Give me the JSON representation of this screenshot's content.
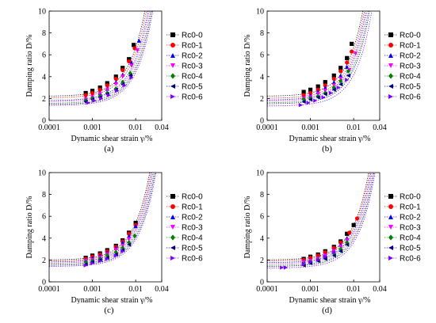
{
  "colors": {
    "Rc0-0": "#000000",
    "Rc0-1": "#ff0000",
    "Rc0-2": "#0000ff",
    "Rc0-3": "#ff00ff",
    "Rc0-4": "#008000",
    "Rc0-5": "#000080",
    "Rc0-6": "#8000ff"
  },
  "markers": {
    "Rc0-0": "square",
    "Rc0-1": "circle",
    "Rc0-2": "triangle-up",
    "Rc0-3": "triangle-down",
    "Rc0-4": "diamond",
    "Rc0-5": "triangle-left",
    "Rc0-6": "triangle-right"
  },
  "chart_data": [
    {
      "type": "scatter",
      "caption": "(a)",
      "xlabel": "Dynamic shear strain γ/%",
      "ylabel": "Damping ratio D/%",
      "xscale": "log",
      "xlim": [
        0.0001,
        0.04
      ],
      "ylim": [
        0,
        10
      ],
      "xticks": [
        "0.0001",
        "0.001",
        "0.01",
        "0.04"
      ],
      "yticks": [
        "0",
        "2",
        "4",
        "6",
        "8",
        "10"
      ],
      "legend": [
        "Rc0-0",
        "Rc0-1",
        "Rc0-2",
        "Rc0-3",
        "Rc0-4",
        "Rc0-5",
        "Rc0-6"
      ],
      "series": [
        {
          "name": "Rc0-0",
          "x": [
            0.0007,
            0.001,
            0.0015,
            0.0022,
            0.0035,
            0.005,
            0.007,
            0.009
          ],
          "y": [
            2.5,
            2.7,
            3.0,
            3.4,
            4.0,
            4.8,
            5.6,
            6.9
          ]
        },
        {
          "name": "Rc0-1",
          "x": [
            0.0007,
            0.001,
            0.0015,
            0.0022,
            0.0035,
            0.005,
            0.007,
            0.0095
          ],
          "y": [
            2.3,
            2.5,
            2.8,
            3.2,
            3.8,
            4.6,
            5.4,
            6.6
          ]
        },
        {
          "name": "Rc0-2",
          "x": [
            0.0007,
            0.001,
            0.0015,
            0.0022,
            0.0035,
            0.005,
            0.008,
            0.012
          ],
          "y": [
            2.0,
            2.2,
            2.5,
            2.9,
            3.5,
            4.2,
            5.3,
            7.3
          ]
        },
        {
          "name": "Rc0-3",
          "x": [
            0.0007,
            0.001,
            0.0015,
            0.0022,
            0.0035,
            0.005,
            0.008,
            0.011
          ],
          "y": [
            1.9,
            2.1,
            2.4,
            2.8,
            3.3,
            4.0,
            5.0,
            6.4
          ]
        },
        {
          "name": "Rc0-4",
          "x": [
            0.0007,
            0.001,
            0.0015,
            0.0022,
            0.0035,
            0.005,
            0.0075
          ],
          "y": [
            1.8,
            2.0,
            2.2,
            2.5,
            2.9,
            3.5,
            4.3
          ]
        },
        {
          "name": "Rc0-5",
          "x": [
            0.0007,
            0.001,
            0.0015,
            0.0022,
            0.0035,
            0.005,
            0.0075
          ],
          "y": [
            1.7,
            1.9,
            2.1,
            2.4,
            2.8,
            3.3,
            4.1
          ]
        },
        {
          "name": "Rc0-6",
          "x": [
            0.0008,
            0.0011,
            0.0016,
            0.0024,
            0.0037,
            0.0055,
            0.008
          ],
          "y": [
            1.6,
            1.8,
            2.0,
            2.3,
            2.7,
            3.2,
            3.9
          ]
        }
      ],
      "fits": [
        {
          "name": "Rc0-0",
          "d0": 2.2,
          "g": 0.0075
        },
        {
          "name": "Rc0-1",
          "d0": 2.05,
          "g": 0.008
        },
        {
          "name": "Rc0-2",
          "d0": 1.8,
          "g": 0.0085
        },
        {
          "name": "Rc0-3",
          "d0": 1.7,
          "g": 0.009
        },
        {
          "name": "Rc0-4",
          "d0": 1.55,
          "g": 0.0095
        },
        {
          "name": "Rc0-5",
          "d0": 1.45,
          "g": 0.01
        },
        {
          "name": "Rc0-6",
          "d0": 1.35,
          "g": 0.0105
        }
      ]
    },
    {
      "type": "scatter",
      "caption": "(b)",
      "xlabel": "Dynamic shear strain γ/%",
      "ylabel": "Damping ratio D/%",
      "xscale": "log",
      "xlim": [
        0.0001,
        0.04
      ],
      "ylim": [
        0,
        10
      ],
      "xticks": [
        "0.0001",
        "0.001",
        "0.01",
        "0.04"
      ],
      "yticks": [
        "0",
        "2",
        "4",
        "6",
        "8",
        "10"
      ],
      "legend": [
        "Rc0-0",
        "Rc0-1",
        "Rc0-2",
        "Rc0-3",
        "Rc0-4",
        "Rc0-5",
        "Rc0-6"
      ],
      "series": [
        {
          "name": "Rc0-0",
          "x": [
            0.0007,
            0.001,
            0.0015,
            0.0022,
            0.0035,
            0.005,
            0.007,
            0.009
          ],
          "y": [
            2.6,
            2.8,
            3.1,
            3.5,
            4.1,
            4.8,
            5.7,
            7.0
          ]
        },
        {
          "name": "Rc0-1",
          "x": [
            0.0007,
            0.001,
            0.0015,
            0.0022,
            0.0035,
            0.005,
            0.007,
            0.009
          ],
          "y": [
            2.3,
            2.5,
            2.8,
            3.2,
            3.8,
            4.5,
            5.3,
            6.3
          ]
        },
        {
          "name": "Rc0-2",
          "x": [
            0.0007,
            0.001,
            0.0015,
            0.0022,
            0.0035,
            0.005,
            0.007
          ],
          "y": [
            2.1,
            2.3,
            2.6,
            3.0,
            3.5,
            4.1,
            4.9
          ]
        },
        {
          "name": "Rc0-3",
          "x": [
            0.0007,
            0.001,
            0.0015,
            0.0022,
            0.0035,
            0.005,
            0.008,
            0.011
          ],
          "y": [
            2.0,
            2.1,
            2.4,
            2.7,
            3.2,
            3.8,
            4.6,
            6.1
          ]
        },
        {
          "name": "Rc0-4",
          "x": [
            0.0007,
            0.001,
            0.0015,
            0.0022,
            0.0035,
            0.005,
            0.0075
          ],
          "y": [
            1.9,
            2.0,
            2.2,
            2.5,
            3.0,
            3.6,
            4.5
          ]
        },
        {
          "name": "Rc0-5",
          "x": [
            0.0007,
            0.001,
            0.0015,
            0.0022,
            0.0035,
            0.005,
            0.0075
          ],
          "y": [
            1.7,
            1.9,
            2.1,
            2.4,
            2.8,
            3.3,
            4.1
          ]
        },
        {
          "name": "Rc0-6",
          "x": [
            0.0006,
            0.0009,
            0.0013,
            0.002,
            0.003,
            0.0045,
            0.007
          ],
          "y": [
            1.4,
            1.6,
            1.8,
            2.1,
            2.5,
            3.0,
            3.7
          ]
        }
      ],
      "fits": [
        {
          "name": "Rc0-0",
          "d0": 2.2,
          "g": 0.0075
        },
        {
          "name": "Rc0-1",
          "d0": 2.0,
          "g": 0.008
        },
        {
          "name": "Rc0-2",
          "d0": 1.85,
          "g": 0.0085
        },
        {
          "name": "Rc0-3",
          "d0": 1.75,
          "g": 0.009
        },
        {
          "name": "Rc0-4",
          "d0": 1.6,
          "g": 0.0095
        },
        {
          "name": "Rc0-5",
          "d0": 1.5,
          "g": 0.01
        },
        {
          "name": "Rc0-6",
          "d0": 1.3,
          "g": 0.011
        }
      ]
    },
    {
      "type": "scatter",
      "caption": "(c)",
      "xlabel": "Dynamic shear strain γ/%",
      "ylabel": "Damping ratio D/%",
      "xscale": "log",
      "xlim": [
        0.0001,
        0.04
      ],
      "ylim": [
        0,
        10
      ],
      "xticks": [
        "0.0001",
        "0.001",
        "0.01",
        "0.04"
      ],
      "yticks": [
        "0",
        "2",
        "4",
        "6",
        "8",
        "10"
      ],
      "legend": [
        "Rc0-0",
        "Rc0-1",
        "Rc0-2",
        "Rc0-3",
        "Rc0-4",
        "Rc0-5",
        "Rc0-6"
      ],
      "series": [
        {
          "name": "Rc0-0",
          "x": [
            0.0007,
            0.001,
            0.0015,
            0.0022,
            0.0035,
            0.005,
            0.007,
            0.01
          ],
          "y": [
            2.2,
            2.4,
            2.6,
            2.9,
            3.3,
            3.8,
            4.5,
            5.4
          ]
        },
        {
          "name": "Rc0-1",
          "x": [
            0.0007,
            0.001,
            0.0015,
            0.0022,
            0.0035,
            0.005,
            0.007,
            0.01
          ],
          "y": [
            2.1,
            2.3,
            2.5,
            2.8,
            3.2,
            3.7,
            4.4,
            5.2
          ]
        },
        {
          "name": "Rc0-2",
          "x": [
            0.0007,
            0.001,
            0.0015,
            0.0022,
            0.0035,
            0.005,
            0.007,
            0.01
          ],
          "y": [
            2.0,
            2.2,
            2.4,
            2.7,
            3.1,
            3.6,
            4.2,
            5.1
          ]
        },
        {
          "name": "Rc0-3",
          "x": [
            0.0007,
            0.001,
            0.0015,
            0.0022,
            0.0035,
            0.005,
            0.007
          ],
          "y": [
            1.9,
            2.0,
            2.2,
            2.5,
            2.9,
            3.3,
            3.9
          ]
        },
        {
          "name": "Rc0-4",
          "x": [
            0.0007,
            0.001,
            0.0015,
            0.0022,
            0.0035,
            0.005,
            0.007,
            0.0095
          ],
          "y": [
            1.8,
            1.9,
            2.1,
            2.4,
            2.7,
            3.1,
            3.6,
            4.2
          ]
        },
        {
          "name": "Rc0-5",
          "x": [
            0.0007,
            0.001,
            0.0015,
            0.0022,
            0.0035,
            0.005,
            0.007
          ],
          "y": [
            1.6,
            1.8,
            2.0,
            2.2,
            2.5,
            2.9,
            3.4
          ]
        },
        {
          "name": "Rc0-6",
          "x": [
            0.0007,
            0.001,
            0.0015,
            0.0022,
            0.0035,
            0.005
          ],
          "y": [
            1.5,
            1.7,
            1.9,
            2.1,
            2.4,
            2.8
          ]
        }
      ],
      "fits": [
        {
          "name": "Rc0-0",
          "d0": 2.0,
          "g": 0.0095
        },
        {
          "name": "Rc0-1",
          "d0": 1.9,
          "g": 0.01
        },
        {
          "name": "Rc0-2",
          "d0": 1.8,
          "g": 0.0105
        },
        {
          "name": "Rc0-3",
          "d0": 1.7,
          "g": 0.011
        },
        {
          "name": "Rc0-4",
          "d0": 1.6,
          "g": 0.0115
        },
        {
          "name": "Rc0-5",
          "d0": 1.5,
          "g": 0.012
        },
        {
          "name": "Rc0-6",
          "d0": 1.4,
          "g": 0.0125
        }
      ]
    },
    {
      "type": "scatter",
      "caption": "(d)",
      "xlabel": "Dynamic shear strain γ/%",
      "ylabel": "Damping ratio D/%",
      "xscale": "log",
      "xlim": [
        0.0001,
        0.04
      ],
      "ylim": [
        0,
        10
      ],
      "xticks": [
        "0.0001",
        "0.001",
        "0.01",
        "0.04"
      ],
      "yticks": [
        "0",
        "2",
        "4",
        "6",
        "8",
        "10"
      ],
      "legend": [
        "Rc0-0",
        "Rc0-1",
        "Rc0-2",
        "Rc0-3",
        "Rc0-4",
        "Rc0-5",
        "Rc0-6"
      ],
      "series": [
        {
          "name": "Rc0-0",
          "x": [
            0.0007,
            0.001,
            0.0015,
            0.0022,
            0.0035,
            0.005,
            0.007,
            0.01
          ],
          "y": [
            2.1,
            2.3,
            2.5,
            2.8,
            3.2,
            3.7,
            4.4,
            5.2
          ]
        },
        {
          "name": "Rc0-1",
          "x": [
            0.0007,
            0.001,
            0.0015,
            0.0022,
            0.0035,
            0.005,
            0.008,
            0.012
          ],
          "y": [
            2.0,
            2.2,
            2.4,
            2.7,
            3.1,
            3.6,
            4.5,
            5.8
          ]
        },
        {
          "name": "Rc0-2",
          "x": [
            0.0007,
            0.001,
            0.0015,
            0.0022,
            0.0035,
            0.005,
            0.007
          ],
          "y": [
            1.9,
            2.0,
            2.2,
            2.5,
            2.9,
            3.4,
            4.0
          ]
        },
        {
          "name": "Rc0-3",
          "x": [
            0.0007,
            0.001,
            0.0015,
            0.0022,
            0.0035,
            0.005,
            0.007
          ],
          "y": [
            1.8,
            1.9,
            2.1,
            2.4,
            2.8,
            3.2,
            3.8
          ]
        },
        {
          "name": "Rc0-4",
          "x": [
            0.0007,
            0.001,
            0.0015,
            0.0022,
            0.0035,
            0.005,
            0.007
          ],
          "y": [
            1.6,
            1.8,
            2.0,
            2.2,
            2.6,
            3.0,
            3.6
          ]
        },
        {
          "name": "Rc0-5",
          "x": [
            0.0007,
            0.001,
            0.0015,
            0.0022,
            0.0035,
            0.005,
            0.007
          ],
          "y": [
            1.5,
            1.7,
            1.9,
            2.1,
            2.4,
            2.8,
            3.4
          ]
        },
        {
          "name": "Rc0-6",
          "x": [
            0.00022,
            0.00027,
            0.0007,
            0.001,
            0.0015,
            0.0022,
            0.0035
          ],
          "y": [
            1.3,
            1.3,
            1.6,
            1.8,
            2.0,
            2.3,
            2.7
          ]
        }
      ],
      "fits": [
        {
          "name": "Rc0-0",
          "d0": 2.0,
          "g": 0.01
        },
        {
          "name": "Rc0-1",
          "d0": 1.9,
          "g": 0.0105
        },
        {
          "name": "Rc0-2",
          "d0": 1.75,
          "g": 0.011
        },
        {
          "name": "Rc0-3",
          "d0": 1.65,
          "g": 0.0115
        },
        {
          "name": "Rc0-4",
          "d0": 1.5,
          "g": 0.012
        },
        {
          "name": "Rc0-5",
          "d0": 1.4,
          "g": 0.0125
        },
        {
          "name": "Rc0-6",
          "d0": 1.25,
          "g": 0.013
        }
      ]
    }
  ]
}
